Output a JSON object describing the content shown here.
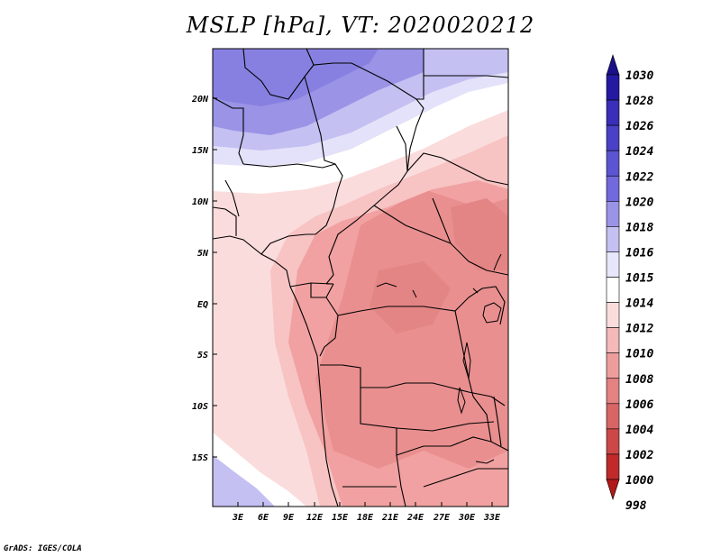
{
  "title": "MSLP [hPa], VT: 2020020212",
  "credit": "GrADS: IGES/COLA",
  "map": {
    "lat_labels": [
      "20N",
      "15N",
      "10N",
      "5N",
      "EQ",
      "5S",
      "10S",
      "15S"
    ],
    "lon_labels": [
      "3E",
      "6E",
      "9E",
      "12E",
      "15E",
      "18E",
      "21E",
      "24E",
      "27E",
      "30E",
      "33E"
    ]
  },
  "colorbar": {
    "levels": [
      "1030",
      "1028",
      "1026",
      "1024",
      "1022",
      "1020",
      "1018",
      "1016",
      "1015",
      "1014",
      "1012",
      "1010",
      "1008",
      "1006",
      "1004",
      "1002",
      "1000",
      "998"
    ],
    "colors": [
      "#1a118a",
      "#241aa2",
      "#3a2fb8",
      "#4a41c6",
      "#5b55d2",
      "#7269dc",
      "#9a93e6",
      "#c4c0f2",
      "#e7e6fb",
      "#ffffff",
      "#fbdcdc",
      "#f5b9b9",
      "#ee9d9d",
      "#e48181",
      "#d86565",
      "#cc4848",
      "#c02a2a",
      "#b21818"
    ]
  }
}
